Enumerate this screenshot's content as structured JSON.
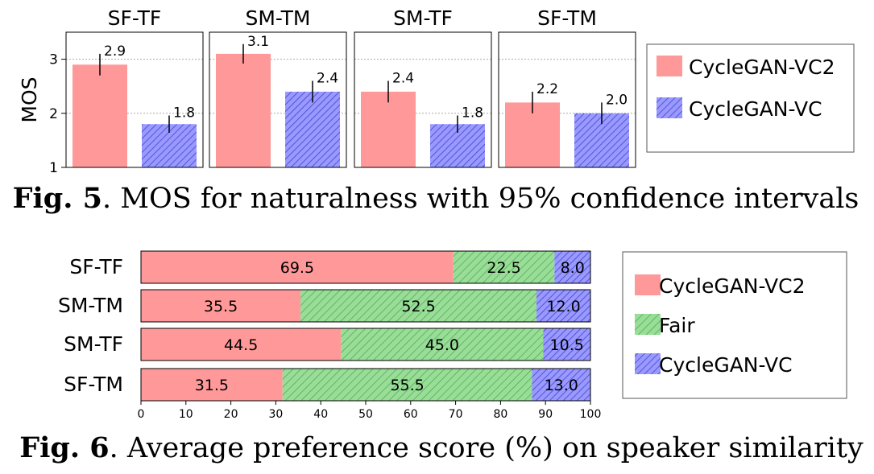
{
  "chart_data": [
    {
      "type": "bar",
      "panels": [
        {
          "title": "SF-TF",
          "values": [
            2.9,
            1.8
          ],
          "ci": [
            0.2,
            0.16
          ]
        },
        {
          "title": "SM-TM",
          "values": [
            3.1,
            2.4
          ],
          "ci": [
            0.18,
            0.2
          ]
        },
        {
          "title": "SM-TF",
          "values": [
            2.4,
            1.8
          ],
          "ci": [
            0.2,
            0.16
          ]
        },
        {
          "title": "SF-TM",
          "values": [
            2.2,
            2.0
          ],
          "ci": [
            0.2,
            0.2
          ]
        }
      ],
      "series": [
        {
          "name": "CycleGAN-VC2",
          "color": "#ff9999",
          "pattern": "solid"
        },
        {
          "name": "CycleGAN-VC",
          "color": "#9999ff",
          "pattern": "hatch"
        }
      ],
      "ylabel": "MOS",
      "ylim": [
        1,
        3.5
      ],
      "yticks": [
        1,
        2,
        3
      ],
      "grid": "y-dotted",
      "legend": "right",
      "caption_bold": "Fig. 5",
      "caption_rest": ". MOS for naturalness with 95% confidence intervals"
    },
    {
      "type": "bar",
      "orientation": "horizontal-stacked",
      "categories": [
        "SF-TF",
        "SM-TM",
        "SM-TF",
        "SF-TM"
      ],
      "series": [
        {
          "name": "CycleGAN-VC2",
          "color": "#ff9999",
          "pattern": "solid",
          "values": [
            69.5,
            35.5,
            44.5,
            31.5
          ]
        },
        {
          "name": "Fair",
          "color": "#99dd99",
          "pattern": "hatch",
          "values": [
            22.5,
            52.5,
            45.0,
            55.5
          ]
        },
        {
          "name": "CycleGAN-VC",
          "color": "#9999ff",
          "pattern": "hatch",
          "values": [
            8.0,
            12.0,
            10.5,
            13.0
          ]
        }
      ],
      "xlim": [
        0,
        100
      ],
      "xticks": [
        0,
        10,
        20,
        30,
        40,
        50,
        60,
        70,
        80,
        90,
        100
      ],
      "legend": "right",
      "caption_bold": "Fig. 6",
      "caption_rest": ". Average preference score (%) on speaker similarity"
    }
  ]
}
